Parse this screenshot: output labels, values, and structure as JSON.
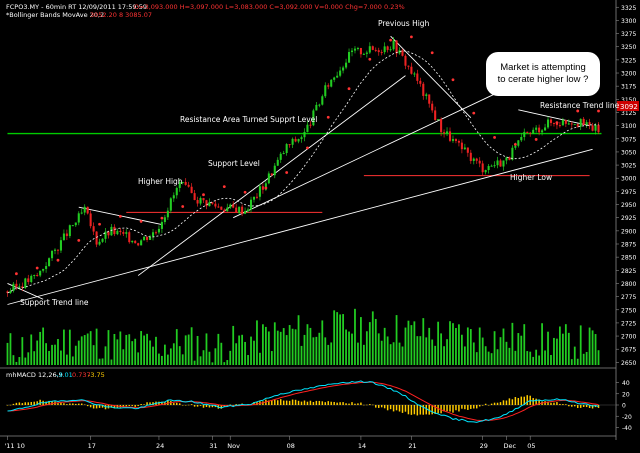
{
  "header": {
    "symbol_line": "FCPO3.MY - 60min RT  12/09/2011  17:59:59",
    "ohlc_line": "O=3,093.000   H=3,097.000   L=3,083.000   C=3,092.000   V=0.000   Chg=7.000   0.23%",
    "indicator_name": "*Bollinger Bands  MovAve 20,2",
    "indicator_values": "3052.20   8   3085.07"
  },
  "macd": {
    "label": "mhMACD 12,26,9",
    "v1": "-3.01",
    "v2": "0.737",
    "v3": "-3.75"
  },
  "annotations": {
    "previous_high": "Previous High",
    "resistance_area": "Resistance Area Turned Supprt Level",
    "support_level": "Support Level",
    "higher_high": "Higher High",
    "support_trend": "Support Trend line",
    "resistance_trend": "Resistance Trend line",
    "higher_low": "Higher Low",
    "bubble_line1": "Market is attempting",
    "bubble_line2": "to cerate higher low ?"
  },
  "colors": {
    "background": "#000000",
    "up_candle": "#22cc22",
    "down_candle": "#ee2222",
    "volume": "#22cc22",
    "axis_text": "#ffffff",
    "resistance_line": "#00cc00",
    "support_line": "#ff3333",
    "trend_line": "#ffffff",
    "middle_band": "#ffffff",
    "upper_band_marker": "#ff3333",
    "macd_line": "#00e5ff",
    "signal_line": "#ff2222",
    "histogram": "#ffcc00",
    "bubble": "#ffffff"
  },
  "chart_data": {
    "type": "candlestick",
    "price_axis": {
      "ticks": [
        2650,
        2675,
        2700,
        2725,
        2750,
        2775,
        2800,
        2825,
        2850,
        2875,
        2900,
        2925,
        2950,
        2975,
        3000,
        3025,
        3050,
        3075,
        3100,
        3125,
        3150,
        3175,
        3200,
        3225,
        3250,
        3275,
        3300,
        3325
      ],
      "range": [
        2645,
        3335
      ],
      "last_price_label": "3092",
      "last_price_label_color": "#ff2222"
    },
    "macd_axis": {
      "ticks": [
        40,
        20,
        0,
        -20,
        -40
      ],
      "range": [
        -48,
        48
      ]
    },
    "x_axis": {
      "labels": [
        "'11 10",
        "17",
        "24",
        "31",
        "Nov",
        "08",
        "14",
        "21",
        "29",
        "Dec",
        "05"
      ],
      "label_bar_index": [
        0,
        28,
        51,
        69,
        75,
        95,
        119,
        136,
        160,
        168,
        176
      ]
    },
    "horizontal_levels": [
      {
        "name": "Resistance Area Turned Supprt Level",
        "value": 3085,
        "color": "#00cc00"
      },
      {
        "name": "Support Level",
        "value": 3005,
        "color": "#ff3333"
      },
      {
        "name": "Higher High",
        "value": 2935,
        "color": "#ff3333"
      }
    ],
    "close_path": [
      {
        "bar": 0,
        "close": 2785
      },
      {
        "bar": 10,
        "close": 2815
      },
      {
        "bar": 20,
        "close": 2895
      },
      {
        "bar": 26,
        "close": 2940
      },
      {
        "bar": 30,
        "close": 2880
      },
      {
        "bar": 35,
        "close": 2900
      },
      {
        "bar": 44,
        "close": 2880
      },
      {
        "bar": 50,
        "close": 2900
      },
      {
        "bar": 58,
        "close": 2990
      },
      {
        "bar": 64,
        "close": 2960
      },
      {
        "bar": 72,
        "close": 2945
      },
      {
        "bar": 80,
        "close": 2940
      },
      {
        "bar": 86,
        "close": 2985
      },
      {
        "bar": 94,
        "close": 3060
      },
      {
        "bar": 100,
        "close": 3085
      },
      {
        "bar": 108,
        "close": 3180
      },
      {
        "bar": 116,
        "close": 3240
      },
      {
        "bar": 124,
        "close": 3245
      },
      {
        "bar": 130,
        "close": 3255
      },
      {
        "bar": 138,
        "close": 3185
      },
      {
        "bar": 146,
        "close": 3095
      },
      {
        "bar": 152,
        "close": 3060
      },
      {
        "bar": 160,
        "close": 3020
      },
      {
        "bar": 168,
        "close": 3035
      },
      {
        "bar": 174,
        "close": 3080
      },
      {
        "bar": 182,
        "close": 3105
      },
      {
        "bar": 190,
        "close": 3110
      },
      {
        "bar": 199,
        "close": 3092
      }
    ],
    "volume_profile": [
      {
        "bar": 0,
        "volume": 2680
      },
      {
        "bar": 15,
        "volume": 2690
      },
      {
        "bar": 25,
        "volume": 2700
      },
      {
        "bar": 35,
        "volume": 2688
      },
      {
        "bar": 50,
        "volume": 2685
      },
      {
        "bar": 60,
        "volume": 2692
      },
      {
        "bar": 70,
        "volume": 2683
      },
      {
        "bar": 85,
        "volume": 2700
      },
      {
        "bar": 100,
        "volume": 2715
      },
      {
        "bar": 115,
        "volume": 2722
      },
      {
        "bar": 125,
        "volume": 2720
      },
      {
        "bar": 135,
        "volume": 2712
      },
      {
        "bar": 150,
        "volume": 2705
      },
      {
        "bar": 165,
        "volume": 2700
      },
      {
        "bar": 180,
        "volume": 2695
      },
      {
        "bar": 199,
        "volume": 2690
      }
    ],
    "macd_path": [
      {
        "bar": 0,
        "macd": -12
      },
      {
        "bar": 12,
        "macd": 4
      },
      {
        "bar": 24,
        "macd": 10
      },
      {
        "bar": 34,
        "macd": -4
      },
      {
        "bar": 44,
        "macd": -6
      },
      {
        "bar": 54,
        "macd": 8
      },
      {
        "bar": 62,
        "macd": 6
      },
      {
        "bar": 72,
        "macd": -4
      },
      {
        "bar": 82,
        "macd": 2
      },
      {
        "bar": 92,
        "macd": 20
      },
      {
        "bar": 102,
        "macd": 30
      },
      {
        "bar": 112,
        "macd": 40
      },
      {
        "bar": 122,
        "macd": 42
      },
      {
        "bar": 132,
        "macd": 22
      },
      {
        "bar": 140,
        "macd": -5
      },
      {
        "bar": 150,
        "macd": -25
      },
      {
        "bar": 158,
        "macd": -30
      },
      {
        "bar": 166,
        "macd": -22
      },
      {
        "bar": 176,
        "macd": 8
      },
      {
        "bar": 186,
        "macd": 10
      },
      {
        "bar": 199,
        "macd": -3
      }
    ]
  }
}
